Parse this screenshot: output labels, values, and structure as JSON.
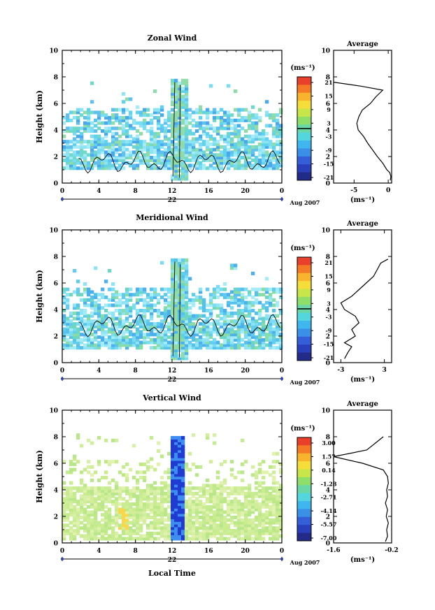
{
  "chart_data": [
    {
      "type": "heatmap",
      "title": "Zonal Wind",
      "ylabel": "Height (km)",
      "xlim": [
        0,
        24
      ],
      "ylim": [
        0,
        10
      ],
      "x_ticks": [
        "0",
        "4",
        "8",
        "12",
        "16",
        "20",
        "0"
      ],
      "y_ticks": [
        "0",
        "2",
        "4",
        "6",
        "8",
        "10"
      ],
      "date_label": "22",
      "month_label": "Aug 2007",
      "colorbar": {
        "unit": "(ms⁻¹)",
        "ticks": [
          "21",
          "15",
          "9",
          "3",
          "-3",
          "-9",
          "-15",
          "-21"
        ]
      },
      "field_description": "Mostly weak westward (light blue/cyan, -3 to -9 m/s) winds between 1 and 5.5 km; greener near zero values 1-3 km; strong feature near 12-13 LT up to ~7.5 km",
      "profile": {
        "title": "Average",
        "unit": "(ms⁻¹)",
        "x_ticks": [
          "-5",
          "0"
        ],
        "xlim": [
          -8,
          0.5
        ],
        "y_ticks": [
          "0",
          "2",
          "4",
          "6",
          "8",
          "10"
        ],
        "points": [
          [
            0.3,
            0.2
          ],
          [
            0.4,
            0.5
          ],
          [
            0.2,
            0.8
          ],
          [
            -0.2,
            1.0
          ],
          [
            -0.8,
            1.5
          ],
          [
            -1.6,
            2.0
          ],
          [
            -2.3,
            2.5
          ],
          [
            -3.0,
            3.0
          ],
          [
            -3.6,
            3.5
          ],
          [
            -4.4,
            4.0
          ],
          [
            -4.6,
            4.5
          ],
          [
            -4.3,
            5.0
          ],
          [
            -3.8,
            5.5
          ],
          [
            -2.6,
            6.0
          ],
          [
            -1.8,
            6.5
          ],
          [
            -0.8,
            7.0
          ],
          [
            -4.0,
            7.3
          ],
          [
            -8.0,
            7.6
          ]
        ]
      }
    },
    {
      "type": "heatmap",
      "title": "Meridional Wind",
      "ylabel": "Height (km)",
      "xlim": [
        0,
        24
      ],
      "ylim": [
        0,
        10
      ],
      "x_ticks": [
        "0",
        "4",
        "8",
        "12",
        "16",
        "20",
        "0"
      ],
      "y_ticks": [
        "0",
        "2",
        "4",
        "6",
        "8",
        "10"
      ],
      "date_label": "22",
      "month_label": "Aug 2007",
      "colorbar": {
        "unit": "(ms⁻¹)",
        "ticks": [
          "21",
          "15",
          "9",
          "3",
          "-3",
          "-9",
          "-15",
          "-21"
        ]
      },
      "field_description": "Weak southward (cyan/light blue) winds 0.5-5.5 km with patches of near-zero green values; feature near 12-13 LT up to ~7.5 km",
      "profile": {
        "title": "Average",
        "unit": "(ms⁻¹)",
        "x_ticks": [
          "-3",
          "3"
        ],
        "xlim": [
          -4,
          4
        ],
        "y_ticks": [
          "0",
          "2",
          "4",
          "6",
          "8",
          "10"
        ],
        "points": [
          [
            -2.5,
            0.3
          ],
          [
            -2.0,
            0.8
          ],
          [
            -1.5,
            1.2
          ],
          [
            -2.5,
            1.5
          ],
          [
            -1.0,
            2.0
          ],
          [
            -1.5,
            2.5
          ],
          [
            -0.5,
            3.0
          ],
          [
            -1.0,
            3.5
          ],
          [
            -2.5,
            4.0
          ],
          [
            -3.0,
            4.5
          ],
          [
            -1.5,
            5.0
          ],
          [
            -0.5,
            5.5
          ],
          [
            0.5,
            6.0
          ],
          [
            1.5,
            6.5
          ],
          [
            2.0,
            7.0
          ],
          [
            2.5,
            7.5
          ],
          [
            3.5,
            7.8
          ]
        ]
      }
    },
    {
      "type": "heatmap",
      "title": "Vertical Wind",
      "ylabel": "Height (km)",
      "xlabel": "Local Time",
      "xlim": [
        0,
        24
      ],
      "ylim": [
        0,
        10
      ],
      "x_ticks": [
        "0",
        "4",
        "8",
        "12",
        "16",
        "20",
        "0"
      ],
      "y_ticks": [
        "0",
        "2",
        "4",
        "6",
        "8",
        "10"
      ],
      "date_label": "22",
      "month_label": "Aug 2007",
      "colorbar": {
        "unit": "(ms⁻¹)",
        "ticks": [
          "3.00",
          "1.57",
          "0.14",
          "-1.28",
          "-2.71",
          "-4.14",
          "-5.57",
          "-7.00"
        ]
      },
      "field_description": "Near-zero (yellow-green) vertical winds 0-4 km; strong downdraft (dark blue, down to -7 m/s) near 12-13 LT from 0 to 8 km; small positive patch near 6-7 LT",
      "profile": {
        "title": "Average",
        "unit": "(ms⁻¹)",
        "x_ticks": [
          "-1.6",
          "-0.2"
        ],
        "xlim": [
          -1.6,
          -0.2
        ],
        "y_ticks": [
          "0",
          "2",
          "4",
          "6",
          "8",
          "10"
        ],
        "points": [
          [
            -0.35,
            0.1
          ],
          [
            -0.3,
            0.5
          ],
          [
            -0.32,
            1.0
          ],
          [
            -0.28,
            1.5
          ],
          [
            -0.33,
            2.0
          ],
          [
            -0.3,
            2.5
          ],
          [
            -0.35,
            3.0
          ],
          [
            -0.3,
            3.5
          ],
          [
            -0.32,
            4.0
          ],
          [
            -0.28,
            4.5
          ],
          [
            -0.3,
            5.0
          ],
          [
            -0.4,
            5.5
          ],
          [
            -0.9,
            6.0
          ],
          [
            -1.6,
            6.5
          ],
          [
            -0.8,
            7.0
          ],
          [
            -0.6,
            7.5
          ],
          [
            -0.4,
            8.0
          ]
        ]
      }
    }
  ]
}
